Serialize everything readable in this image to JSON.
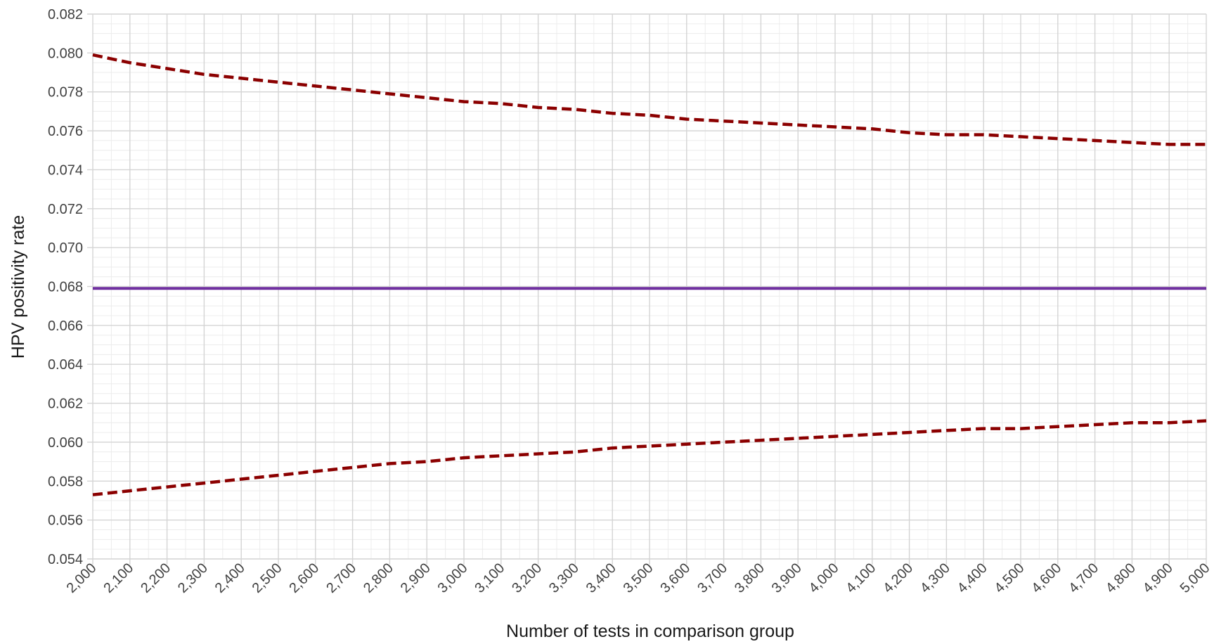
{
  "chart_data": {
    "type": "line",
    "title": "",
    "xlabel": "Number of tests in comparison group",
    "ylabel": "HPV positivity rate",
    "xlim": [
      2000,
      5000
    ],
    "ylim": [
      0.054,
      0.082
    ],
    "x_ticks": [
      "2,000",
      "2,100",
      "2,200",
      "2,300",
      "2,400",
      "2,500",
      "2,600",
      "2,700",
      "2,800",
      "2,900",
      "3,000",
      "3,100",
      "3,200",
      "3,300",
      "3,400",
      "3,500",
      "3,600",
      "3,700",
      "3,800",
      "3,900",
      "4,000",
      "4,100",
      "4,200",
      "4,300",
      "4,400",
      "4,500",
      "4,600",
      "4,700",
      "4,800",
      "4,900",
      "5,000"
    ],
    "y_ticks": [
      "0.054",
      "0.056",
      "0.058",
      "0.060",
      "0.062",
      "0.064",
      "0.066",
      "0.068",
      "0.070",
      "0.072",
      "0.074",
      "0.076",
      "0.078",
      "0.080",
      "0.082"
    ],
    "grid": true,
    "legend": "none",
    "x": [
      2000,
      2100,
      2200,
      2300,
      2400,
      2500,
      2600,
      2700,
      2800,
      2900,
      3000,
      3100,
      3200,
      3300,
      3400,
      3500,
      3600,
      3700,
      3800,
      3900,
      4000,
      4100,
      4200,
      4300,
      4400,
      4500,
      4600,
      4700,
      4800,
      4900,
      5000
    ],
    "series": [
      {
        "style": "dashed",
        "color": "#8b0000",
        "values": [
          0.0799,
          0.0795,
          0.0792,
          0.0789,
          0.0787,
          0.0785,
          0.0783,
          0.0781,
          0.0779,
          0.0777,
          0.0775,
          0.0774,
          0.0772,
          0.0771,
          0.0769,
          0.0768,
          0.0766,
          0.0765,
          0.0764,
          0.0763,
          0.0762,
          0.0761,
          0.0759,
          0.0758,
          0.0758,
          0.0757,
          0.0756,
          0.0755,
          0.0754,
          0.0753,
          0.0753
        ]
      },
      {
        "style": "solid",
        "color": "#7030a0",
        "values": [
          0.0679,
          0.0679,
          0.0679,
          0.0679,
          0.0679,
          0.0679,
          0.0679,
          0.0679,
          0.0679,
          0.0679,
          0.0679,
          0.0679,
          0.0679,
          0.0679,
          0.0679,
          0.0679,
          0.0679,
          0.0679,
          0.0679,
          0.0679,
          0.0679,
          0.0679,
          0.0679,
          0.0679,
          0.0679,
          0.0679,
          0.0679,
          0.0679,
          0.0679,
          0.0679,
          0.0679
        ]
      },
      {
        "style": "dashed",
        "color": "#8b0000",
        "values": [
          0.0573,
          0.0575,
          0.0577,
          0.0579,
          0.0581,
          0.0583,
          0.0585,
          0.0587,
          0.0589,
          0.059,
          0.0592,
          0.0593,
          0.0594,
          0.0595,
          0.0597,
          0.0598,
          0.0599,
          0.06,
          0.0601,
          0.0602,
          0.0603,
          0.0604,
          0.0605,
          0.0606,
          0.0607,
          0.0607,
          0.0608,
          0.0609,
          0.061,
          0.061,
          0.0611
        ]
      }
    ]
  }
}
